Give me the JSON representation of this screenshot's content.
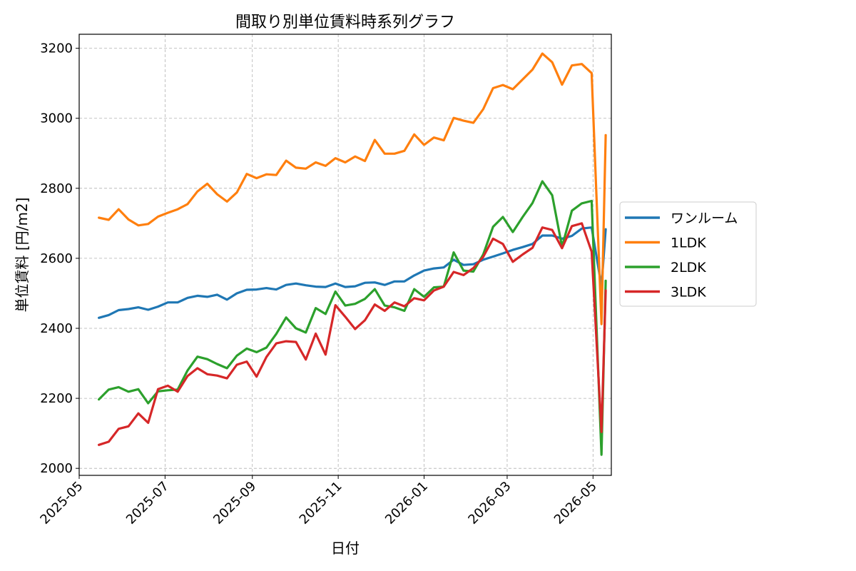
{
  "chart_data": {
    "type": "line",
    "title": "間取り別単位賃料時系列グラフ",
    "xlabel": "日付",
    "ylabel": "単位賃料 [円/m2]",
    "ylim": [
      1980,
      3240
    ],
    "xlim": [
      "2025-05-01",
      "2026-05-14"
    ],
    "yticks": [
      2000,
      2200,
      2400,
      2600,
      2800,
      3000,
      3200
    ],
    "xticks": [
      "2025-05",
      "2025-07",
      "2025-09",
      "2025-11",
      "2026-01",
      "2026-03",
      "2026-05"
    ],
    "grid": true,
    "legend_position": "right",
    "series": [
      {
        "name": "ワンルーム",
        "color": "#1f77b4",
        "points": [
          [
            "2025-05-15",
            2430
          ],
          [
            "2025-05-22",
            2438
          ],
          [
            "2025-05-29",
            2452
          ],
          [
            "2025-06-05",
            2455
          ],
          [
            "2025-06-12",
            2460
          ],
          [
            "2025-06-19",
            2453
          ],
          [
            "2025-06-26",
            2462
          ],
          [
            "2025-07-03",
            2474
          ],
          [
            "2025-07-10",
            2474
          ],
          [
            "2025-07-17",
            2487
          ],
          [
            "2025-07-24",
            2493
          ],
          [
            "2025-07-31",
            2490
          ],
          [
            "2025-08-07",
            2496
          ],
          [
            "2025-08-14",
            2482
          ],
          [
            "2025-08-21",
            2500
          ],
          [
            "2025-08-28",
            2510
          ],
          [
            "2025-09-04",
            2511
          ],
          [
            "2025-09-11",
            2515
          ],
          [
            "2025-09-18",
            2511
          ],
          [
            "2025-09-25",
            2524
          ],
          [
            "2025-10-02",
            2528
          ],
          [
            "2025-10-09",
            2523
          ],
          [
            "2025-10-16",
            2519
          ],
          [
            "2025-10-23",
            2518
          ],
          [
            "2025-10-30",
            2528
          ],
          [
            "2025-11-06",
            2518
          ],
          [
            "2025-11-13",
            2520
          ],
          [
            "2025-11-20",
            2530
          ],
          [
            "2025-11-27",
            2531
          ],
          [
            "2025-12-04",
            2524
          ],
          [
            "2025-12-11",
            2534
          ],
          [
            "2025-12-18",
            2534
          ],
          [
            "2025-12-25",
            2551
          ],
          [
            "2026-01-01",
            2565
          ],
          [
            "2026-01-08",
            2571
          ],
          [
            "2026-01-15",
            2574
          ],
          [
            "2026-01-22",
            2596
          ],
          [
            "2026-01-29",
            2581
          ],
          [
            "2026-02-05",
            2583
          ],
          [
            "2026-02-12",
            2596
          ],
          [
            "2026-02-19",
            2605
          ],
          [
            "2026-02-26",
            2614
          ],
          [
            "2026-03-05",
            2624
          ],
          [
            "2026-03-12",
            2632
          ],
          [
            "2026-03-19",
            2641
          ],
          [
            "2026-03-26",
            2665
          ],
          [
            "2026-04-02",
            2665
          ],
          [
            "2026-04-09",
            2656
          ],
          [
            "2026-04-16",
            2664
          ],
          [
            "2026-04-23",
            2685
          ],
          [
            "2026-04-30",
            2688
          ],
          [
            "2026-05-07",
            2520
          ],
          [
            "2026-05-10",
            2683
          ]
        ]
      },
      {
        "name": "1LDK",
        "color": "#ff7f0e",
        "points": [
          [
            "2025-05-15",
            2716
          ],
          [
            "2025-05-22",
            2710
          ],
          [
            "2025-05-29",
            2740
          ],
          [
            "2025-06-05",
            2711
          ],
          [
            "2025-06-12",
            2694
          ],
          [
            "2025-06-19",
            2698
          ],
          [
            "2025-06-26",
            2719
          ],
          [
            "2025-07-03",
            2730
          ],
          [
            "2025-07-10",
            2740
          ],
          [
            "2025-07-17",
            2755
          ],
          [
            "2025-07-24",
            2791
          ],
          [
            "2025-07-31",
            2813
          ],
          [
            "2025-08-07",
            2783
          ],
          [
            "2025-08-14",
            2762
          ],
          [
            "2025-08-21",
            2788
          ],
          [
            "2025-08-28",
            2841
          ],
          [
            "2025-09-04",
            2829
          ],
          [
            "2025-09-11",
            2840
          ],
          [
            "2025-09-18",
            2838
          ],
          [
            "2025-09-25",
            2879
          ],
          [
            "2025-10-02",
            2859
          ],
          [
            "2025-10-09",
            2856
          ],
          [
            "2025-10-16",
            2874
          ],
          [
            "2025-10-23",
            2864
          ],
          [
            "2025-10-30",
            2886
          ],
          [
            "2025-11-06",
            2874
          ],
          [
            "2025-11-13",
            2891
          ],
          [
            "2025-11-20",
            2878
          ],
          [
            "2025-11-27",
            2938
          ],
          [
            "2025-12-04",
            2899
          ],
          [
            "2025-12-11",
            2899
          ],
          [
            "2025-12-18",
            2907
          ],
          [
            "2025-12-25",
            2954
          ],
          [
            "2026-01-01",
            2924
          ],
          [
            "2026-01-08",
            2945
          ],
          [
            "2026-01-15",
            2937
          ],
          [
            "2026-01-22",
            3001
          ],
          [
            "2026-01-29",
            2993
          ],
          [
            "2026-02-05",
            2987
          ],
          [
            "2026-02-12",
            3026
          ],
          [
            "2026-02-19",
            3086
          ],
          [
            "2026-02-26",
            3095
          ],
          [
            "2026-03-05",
            3083
          ],
          [
            "2026-03-12",
            3111
          ],
          [
            "2026-03-19",
            3139
          ],
          [
            "2026-03-26",
            3185
          ],
          [
            "2026-04-02",
            3160
          ],
          [
            "2026-04-09",
            3096
          ],
          [
            "2026-04-16",
            3151
          ],
          [
            "2026-04-23",
            3155
          ],
          [
            "2026-04-30",
            3129
          ],
          [
            "2026-05-07",
            2412
          ],
          [
            "2026-05-10",
            2952
          ]
        ]
      },
      {
        "name": "2LDK",
        "color": "#2ca02c",
        "points": [
          [
            "2025-05-15",
            2197
          ],
          [
            "2025-05-22",
            2225
          ],
          [
            "2025-05-29",
            2232
          ],
          [
            "2025-06-05",
            2219
          ],
          [
            "2025-06-12",
            2226
          ],
          [
            "2025-06-19",
            2186
          ],
          [
            "2025-06-26",
            2220
          ],
          [
            "2025-07-03",
            2223
          ],
          [
            "2025-07-10",
            2225
          ],
          [
            "2025-07-17",
            2280
          ],
          [
            "2025-07-24",
            2319
          ],
          [
            "2025-07-31",
            2312
          ],
          [
            "2025-08-07",
            2298
          ],
          [
            "2025-08-14",
            2286
          ],
          [
            "2025-08-21",
            2322
          ],
          [
            "2025-08-28",
            2342
          ],
          [
            "2025-09-04",
            2332
          ],
          [
            "2025-09-11",
            2345
          ],
          [
            "2025-09-18",
            2384
          ],
          [
            "2025-09-25",
            2431
          ],
          [
            "2025-10-02",
            2400
          ],
          [
            "2025-10-09",
            2388
          ],
          [
            "2025-10-16",
            2458
          ],
          [
            "2025-10-23",
            2441
          ],
          [
            "2025-10-30",
            2505
          ],
          [
            "2025-11-06",
            2465
          ],
          [
            "2025-11-13",
            2470
          ],
          [
            "2025-11-20",
            2484
          ],
          [
            "2025-11-27",
            2512
          ],
          [
            "2025-12-04",
            2465
          ],
          [
            "2025-12-11",
            2460
          ],
          [
            "2025-12-18",
            2450
          ],
          [
            "2025-12-25",
            2512
          ],
          [
            "2026-01-01",
            2490
          ],
          [
            "2026-01-08",
            2517
          ],
          [
            "2026-01-15",
            2519
          ],
          [
            "2026-01-22",
            2617
          ],
          [
            "2026-01-29",
            2565
          ],
          [
            "2026-02-05",
            2562
          ],
          [
            "2026-02-12",
            2611
          ],
          [
            "2026-02-19",
            2690
          ],
          [
            "2026-02-26",
            2718
          ],
          [
            "2026-03-05",
            2675
          ],
          [
            "2026-03-12",
            2718
          ],
          [
            "2026-03-19",
            2758
          ],
          [
            "2026-03-26",
            2820
          ],
          [
            "2026-04-02",
            2780
          ],
          [
            "2026-04-09",
            2633
          ],
          [
            "2026-04-16",
            2736
          ],
          [
            "2026-04-23",
            2757
          ],
          [
            "2026-04-30",
            2764
          ],
          [
            "2026-05-07",
            2039
          ],
          [
            "2026-05-10",
            2536
          ]
        ]
      },
      {
        "name": "3LDK",
        "color": "#d62728",
        "points": [
          [
            "2025-05-15",
            2067
          ],
          [
            "2025-05-22",
            2076
          ],
          [
            "2025-05-29",
            2113
          ],
          [
            "2025-06-05",
            2120
          ],
          [
            "2025-06-12",
            2157
          ],
          [
            "2025-06-19",
            2130
          ],
          [
            "2025-06-26",
            2226
          ],
          [
            "2025-07-03",
            2236
          ],
          [
            "2025-07-10",
            2219
          ],
          [
            "2025-07-17",
            2264
          ],
          [
            "2025-07-24",
            2286
          ],
          [
            "2025-07-31",
            2269
          ],
          [
            "2025-08-07",
            2265
          ],
          [
            "2025-08-14",
            2257
          ],
          [
            "2025-08-21",
            2296
          ],
          [
            "2025-08-28",
            2305
          ],
          [
            "2025-09-04",
            2262
          ],
          [
            "2025-09-11",
            2318
          ],
          [
            "2025-09-18",
            2357
          ],
          [
            "2025-09-25",
            2363
          ],
          [
            "2025-10-02",
            2361
          ],
          [
            "2025-10-09",
            2311
          ],
          [
            "2025-10-16",
            2385
          ],
          [
            "2025-10-23",
            2325
          ],
          [
            "2025-10-30",
            2466
          ],
          [
            "2025-11-06",
            2433
          ],
          [
            "2025-11-13",
            2398
          ],
          [
            "2025-11-20",
            2423
          ],
          [
            "2025-11-27",
            2468
          ],
          [
            "2025-12-04",
            2450
          ],
          [
            "2025-12-11",
            2474
          ],
          [
            "2025-12-18",
            2463
          ],
          [
            "2025-12-25",
            2486
          ],
          [
            "2026-01-01",
            2480
          ],
          [
            "2026-01-08",
            2508
          ],
          [
            "2026-01-15",
            2519
          ],
          [
            "2026-01-22",
            2561
          ],
          [
            "2026-01-29",
            2552
          ],
          [
            "2026-02-05",
            2572
          ],
          [
            "2026-02-12",
            2604
          ],
          [
            "2026-02-19",
            2656
          ],
          [
            "2026-02-26",
            2641
          ],
          [
            "2026-03-05",
            2590
          ],
          [
            "2026-03-12",
            2611
          ],
          [
            "2026-03-19",
            2630
          ],
          [
            "2026-03-26",
            2688
          ],
          [
            "2026-04-02",
            2681
          ],
          [
            "2026-04-09",
            2629
          ],
          [
            "2026-04-16",
            2692
          ],
          [
            "2026-04-23",
            2700
          ],
          [
            "2026-04-30",
            2619
          ],
          [
            "2026-05-07",
            2104
          ],
          [
            "2026-05-10",
            2508
          ]
        ]
      }
    ]
  }
}
